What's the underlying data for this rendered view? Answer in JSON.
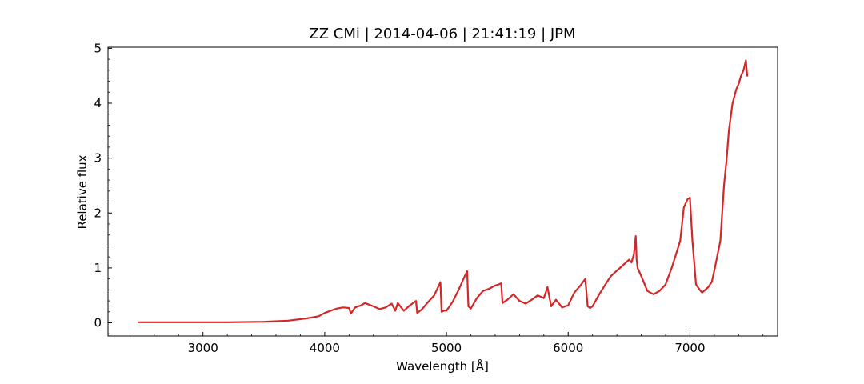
{
  "chart_data": {
    "type": "line",
    "title": "ZZ CMi | 2014-04-06 | 21:41:19 | JPM",
    "xlabel": "Wavelength [Å]",
    "ylabel": "Relative flux",
    "xlim": [
      2220,
      7720
    ],
    "ylim": [
      -0.24,
      5.02
    ],
    "xticks": [
      3000,
      4000,
      5000,
      6000,
      7000
    ],
    "yticks": [
      0,
      1,
      2,
      3,
      4,
      5
    ],
    "grid": false,
    "series": [
      {
        "color": "#d62728",
        "x": [
          2470,
          2800,
          3200,
          3500,
          3700,
          3850,
          3900,
          3950,
          4000,
          4050,
          4100,
          4150,
          4200,
          4215,
          4250,
          4300,
          4330,
          4400,
          4450,
          4500,
          4550,
          4580,
          4600,
          4650,
          4700,
          4750,
          4760,
          4800,
          4850,
          4900,
          4950,
          4960,
          4980,
          5000,
          5050,
          5100,
          5150,
          5170,
          5180,
          5200,
          5250,
          5300,
          5350,
          5400,
          5430,
          5450,
          5460,
          5500,
          5550,
          5600,
          5650,
          5700,
          5750,
          5800,
          5830,
          5860,
          5900,
          5950,
          6000,
          6050,
          6100,
          6140,
          6160,
          6180,
          6200,
          6250,
          6300,
          6350,
          6400,
          6450,
          6500,
          6520,
          6540,
          6555,
          6562,
          6570,
          6600,
          6650,
          6700,
          6750,
          6800,
          6850,
          6900,
          6920,
          6950,
          6980,
          7000,
          7020,
          7050,
          7080,
          7100,
          7150,
          7180,
          7200,
          7250,
          7280,
          7300,
          7320,
          7350,
          7380,
          7400,
          7420,
          7440,
          7460,
          7470
        ],
        "y": [
          0.01,
          0.01,
          0.01,
          0.02,
          0.04,
          0.08,
          0.1,
          0.12,
          0.18,
          0.22,
          0.26,
          0.28,
          0.27,
          0.17,
          0.28,
          0.32,
          0.36,
          0.3,
          0.25,
          0.28,
          0.35,
          0.22,
          0.36,
          0.22,
          0.32,
          0.4,
          0.18,
          0.25,
          0.38,
          0.5,
          0.74,
          0.2,
          0.22,
          0.22,
          0.38,
          0.6,
          0.85,
          0.94,
          0.3,
          0.26,
          0.45,
          0.58,
          0.62,
          0.68,
          0.7,
          0.72,
          0.36,
          0.42,
          0.52,
          0.4,
          0.35,
          0.42,
          0.5,
          0.45,
          0.65,
          0.3,
          0.42,
          0.28,
          0.32,
          0.55,
          0.68,
          0.8,
          0.3,
          0.27,
          0.3,
          0.5,
          0.68,
          0.85,
          0.95,
          1.05,
          1.15,
          1.1,
          1.25,
          1.58,
          1.15,
          1.0,
          0.85,
          0.58,
          0.52,
          0.58,
          0.7,
          1.0,
          1.35,
          1.5,
          2.1,
          2.25,
          2.28,
          1.5,
          0.7,
          0.6,
          0.55,
          0.65,
          0.75,
          0.95,
          1.5,
          2.5,
          2.95,
          3.5,
          4.0,
          4.25,
          4.35,
          4.5,
          4.6,
          4.78,
          4.5
        ]
      }
    ]
  }
}
